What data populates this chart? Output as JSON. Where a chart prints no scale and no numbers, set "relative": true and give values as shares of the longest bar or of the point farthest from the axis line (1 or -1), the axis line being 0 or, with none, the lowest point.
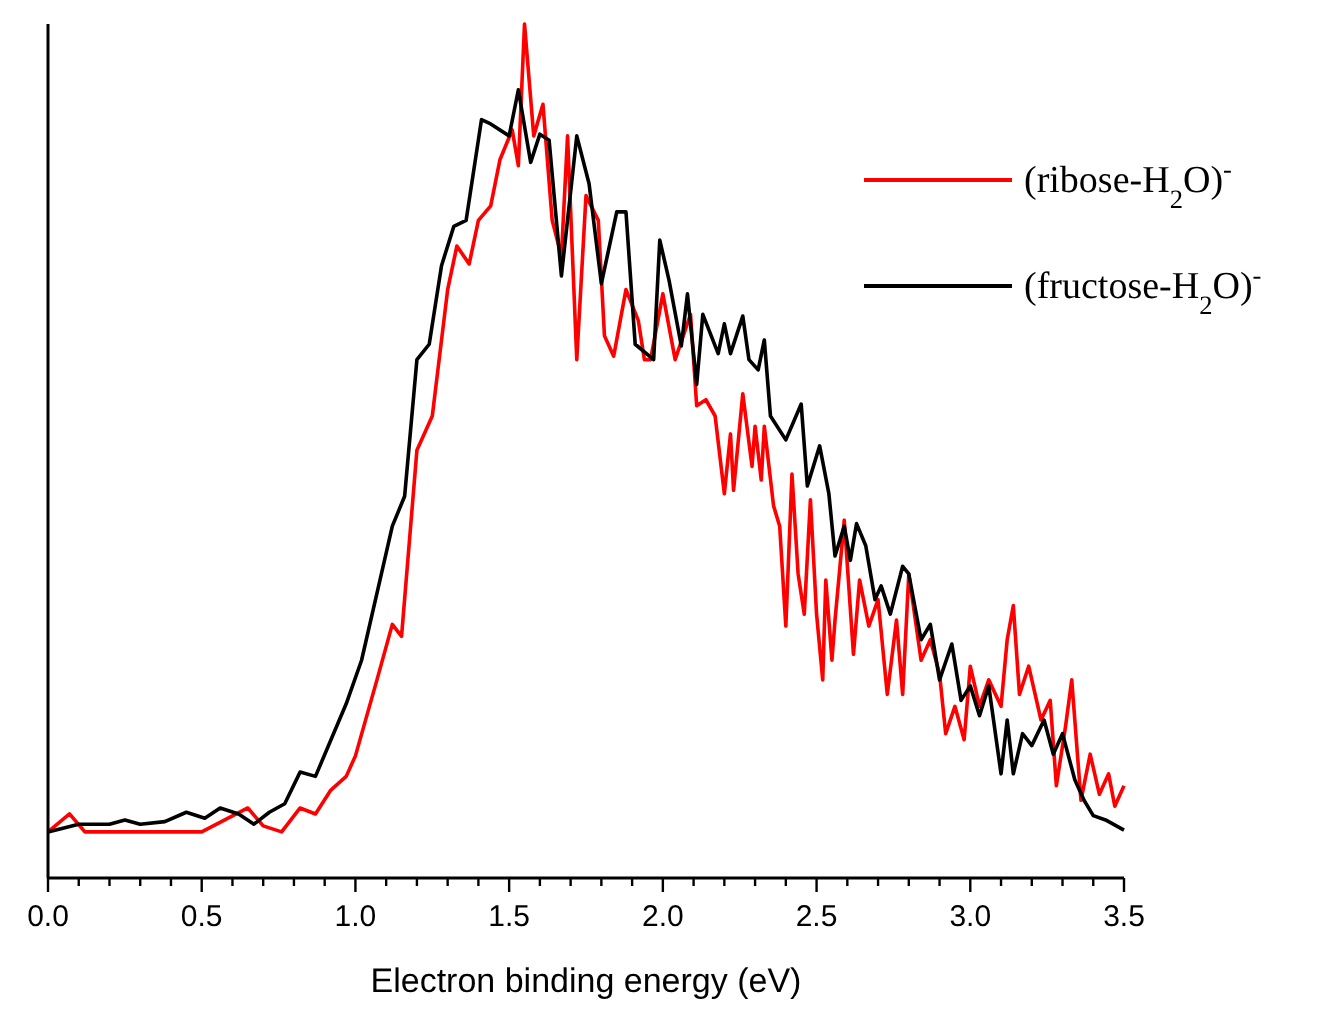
{
  "chart_data": {
    "type": "line",
    "relative": true,
    "xlabel": "Electron binding energy (eV)",
    "legend": "top right",
    "xlim": [
      0,
      3.5
    ],
    "xticks": [
      {
        "value": 0,
        "label": "0.0"
      },
      {
        "value": 0.1,
        "label": null
      },
      {
        "value": 0.2,
        "label": null
      },
      {
        "value": 0.3,
        "label": null
      },
      {
        "value": 0.4,
        "label": null
      },
      {
        "value": 0.5,
        "label": "0.5"
      },
      {
        "value": 0.6,
        "label": null
      },
      {
        "value": 0.7,
        "label": null
      },
      {
        "value": 0.8,
        "label": null
      },
      {
        "value": 0.9,
        "label": null
      },
      {
        "value": 1,
        "label": "1.0"
      },
      {
        "value": 1.1,
        "label": null
      },
      {
        "value": 1.2,
        "label": null
      },
      {
        "value": 1.3,
        "label": null
      },
      {
        "value": 1.4,
        "label": null
      },
      {
        "value": 1.5,
        "label": "1.5"
      },
      {
        "value": 1.6,
        "label": null
      },
      {
        "value": 1.7,
        "label": null
      },
      {
        "value": 1.8,
        "label": null
      },
      {
        "value": 1.9,
        "label": null
      },
      {
        "value": 2,
        "label": "2.0"
      },
      {
        "value": 2.1,
        "label": null
      },
      {
        "value": 2.2,
        "label": null
      },
      {
        "value": 2.3,
        "label": null
      },
      {
        "value": 2.4,
        "label": null
      },
      {
        "value": 2.5,
        "label": "2.5"
      },
      {
        "value": 2.6,
        "label": null
      },
      {
        "value": 2.7,
        "label": null
      },
      {
        "value": 2.8,
        "label": null
      },
      {
        "value": 2.9,
        "label": null
      },
      {
        "value": 3,
        "label": "3.0"
      },
      {
        "value": 3.1,
        "label": null
      },
      {
        "value": 3.2,
        "label": null
      },
      {
        "value": 3.3,
        "label": null
      },
      {
        "value": 3.4,
        "label": null
      },
      {
        "value": 3.5,
        "label": "3.5"
      }
    ],
    "series": [
      {
        "name": "(ribose-H$_{2}$O)$^{-}$",
        "color": "#ff0000",
        "x": [
          0,
          0.07,
          0.12,
          0.5,
          0.65,
          0.7,
          0.76,
          0.82,
          0.87,
          0.92,
          0.97,
          1.0,
          1.07,
          1.12,
          1.15,
          1.2,
          1.25,
          1.3,
          1.33,
          1.37,
          1.4,
          1.44,
          1.47,
          1.51,
          1.53,
          1.55,
          1.58,
          1.61,
          1.64,
          1.67,
          1.69,
          1.72,
          1.75,
          1.79,
          1.81,
          1.84,
          1.88,
          1.92,
          1.94,
          1.96,
          2.0,
          2.04,
          2.09,
          2.11,
          2.14,
          2.17,
          2.2,
          2.22,
          2.23,
          2.26,
          2.29,
          2.3,
          2.32,
          2.33,
          2.36,
          2.38,
          2.4,
          2.42,
          2.44,
          2.46,
          2.48,
          2.5,
          2.52,
          2.53,
          2.55,
          2.56,
          2.59,
          2.62,
          2.64,
          2.67,
          2.7,
          2.73,
          2.76,
          2.78,
          2.8,
          2.84,
          2.87,
          2.9,
          2.92,
          2.95,
          2.98,
          3.0,
          3.03,
          3.06,
          3.1,
          3.12,
          3.14,
          3.16,
          3.19,
          3.23,
          3.26,
          3.28,
          3.31,
          3.33,
          3.36,
          3.39,
          3.42,
          3.45,
          3.47,
          3.5
        ],
        "values": [
          0.054,
          0.075,
          0.054,
          0.054,
          0.082,
          0.061,
          0.054,
          0.082,
          0.075,
          0.103,
          0.119,
          0.143,
          0.232,
          0.297,
          0.283,
          0.501,
          0.541,
          0.689,
          0.74,
          0.719,
          0.77,
          0.787,
          0.841,
          0.876,
          0.834,
          1.0,
          0.869,
          0.906,
          0.77,
          0.728,
          0.869,
          0.607,
          0.799,
          0.77,
          0.635,
          0.611,
          0.689,
          0.653,
          0.607,
          0.607,
          0.684,
          0.607,
          0.66,
          0.553,
          0.56,
          0.541,
          0.45,
          0.52,
          0.454,
          0.567,
          0.482,
          0.529,
          0.466,
          0.529,
          0.436,
          0.412,
          0.295,
          0.473,
          0.356,
          0.309,
          0.443,
          0.309,
          0.232,
          0.349,
          0.255,
          0.302,
          0.419,
          0.262,
          0.349,
          0.295,
          0.326,
          0.215,
          0.302,
          0.215,
          0.356,
          0.255,
          0.279,
          0.239,
          0.169,
          0.201,
          0.162,
          0.248,
          0.201,
          0.232,
          0.201,
          0.279,
          0.319,
          0.215,
          0.248,
          0.185,
          0.208,
          0.108,
          0.178,
          0.232,
          0.091,
          0.145,
          0.098,
          0.122,
          0.084,
          0.108
        ]
      },
      {
        "name": "(fructose-H$_{2}$O)$^{-}$",
        "color": "#000000",
        "x": [
          0,
          0.1,
          0.2,
          0.25,
          0.3,
          0.38,
          0.45,
          0.51,
          0.56,
          0.62,
          0.67,
          0.72,
          0.77,
          0.82,
          0.87,
          0.97,
          1.02,
          1.08,
          1.12,
          1.16,
          1.2,
          1.24,
          1.28,
          1.32,
          1.36,
          1.41,
          1.44,
          1.5,
          1.53,
          1.57,
          1.6,
          1.63,
          1.67,
          1.72,
          1.76,
          1.8,
          1.85,
          1.88,
          1.91,
          1.97,
          1.99,
          2.02,
          2.06,
          2.08,
          2.11,
          2.13,
          2.18,
          2.2,
          2.22,
          2.26,
          2.28,
          2.31,
          2.33,
          2.35,
          2.4,
          2.45,
          2.47,
          2.51,
          2.54,
          2.56,
          2.59,
          2.61,
          2.63,
          2.66,
          2.69,
          2.71,
          2.74,
          2.78,
          2.8,
          2.84,
          2.87,
          2.9,
          2.94,
          2.97,
          3.0,
          3.03,
          3.06,
          3.1,
          3.12,
          3.14,
          3.17,
          3.2,
          3.24,
          3.27,
          3.3,
          3.34,
          3.37,
          3.4,
          3.44,
          3.5
        ],
        "values": [
          0.054,
          0.063,
          0.063,
          0.068,
          0.063,
          0.066,
          0.077,
          0.07,
          0.082,
          0.075,
          0.063,
          0.077,
          0.087,
          0.124,
          0.119,
          0.204,
          0.255,
          0.349,
          0.412,
          0.447,
          0.607,
          0.625,
          0.717,
          0.763,
          0.77,
          0.888,
          0.883,
          0.869,
          0.923,
          0.838,
          0.871,
          0.864,
          0.705,
          0.869,
          0.813,
          0.696,
          0.78,
          0.78,
          0.625,
          0.607,
          0.747,
          0.7,
          0.623,
          0.684,
          0.578,
          0.66,
          0.614,
          0.649,
          0.614,
          0.658,
          0.607,
          0.595,
          0.63,
          0.541,
          0.513,
          0.555,
          0.459,
          0.506,
          0.45,
          0.377,
          0.412,
          0.372,
          0.415,
          0.389,
          0.326,
          0.342,
          0.309,
          0.365,
          0.356,
          0.279,
          0.297,
          0.232,
          0.274,
          0.208,
          0.225,
          0.19,
          0.225,
          0.122,
          0.185,
          0.122,
          0.169,
          0.155,
          0.185,
          0.145,
          0.169,
          0.115,
          0.091,
          0.073,
          0.068,
          0.056
        ]
      }
    ]
  }
}
